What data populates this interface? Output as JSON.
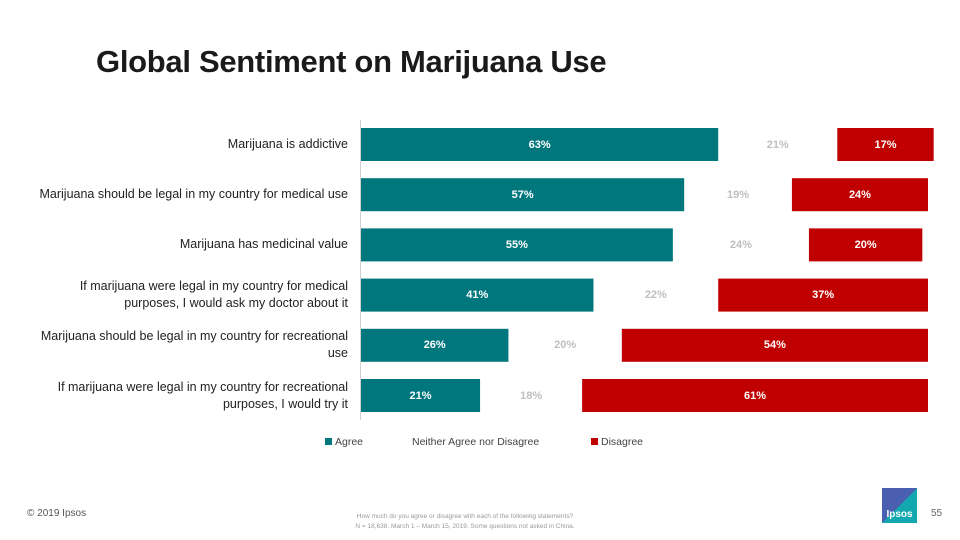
{
  "title": "Global Sentiment on Marijuana Use",
  "chart_data": {
    "type": "bar",
    "orientation": "horizontal-stacked",
    "categories": [
      "Marijuana is addictive",
      "Marijuana should be legal in my country for medical use",
      "Marijuana has medicinal value",
      "If marijuana were legal in my country for medical purposes, I would ask my doctor about it",
      "Marijuana should be legal in my country for recreational use",
      "If marijuana were legal in my country for recreational purposes, I would try it"
    ],
    "series": [
      {
        "name": "Agree",
        "color": "#00767d",
        "values": [
          63,
          57,
          55,
          41,
          26,
          21
        ]
      },
      {
        "name": "Neither Agree nor Disagree",
        "color": "transparent",
        "label_color": "#bfbfbf",
        "values": [
          21,
          19,
          24,
          22,
          20,
          18
        ]
      },
      {
        "name": "Disagree",
        "color": "#c00000",
        "values": [
          17,
          24,
          20,
          37,
          54,
          61
        ]
      }
    ],
    "value_format": "percent",
    "legend": "bottom",
    "grid": false
  },
  "footer": {
    "copyright": "© 2019 Ipsos",
    "note_line1": "How much do you agree or disagree with each of the following statements?",
    "note_line2": "N = 18,638. March 1 – March 15, 2019. Some questions not asked in China.",
    "page": "55",
    "logo": "Ipsos"
  }
}
